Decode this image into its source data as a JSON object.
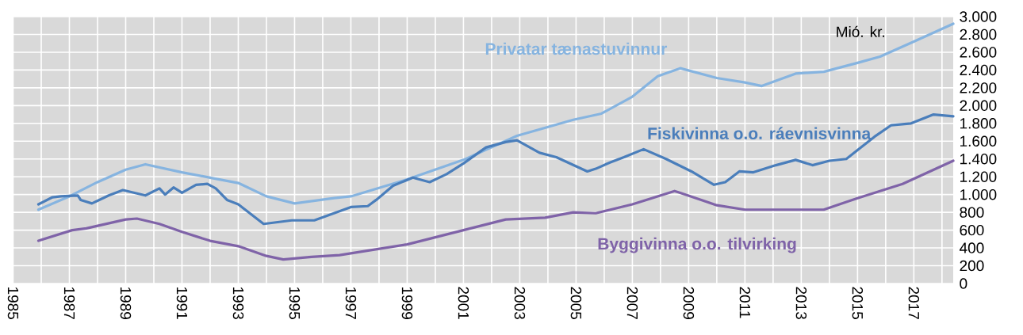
{
  "chart_data": {
    "type": "line",
    "ylabel": "Mió. kr.",
    "grid": true,
    "xlim": [
      1985,
      2018.4
    ],
    "ylim": [
      0,
      3000
    ],
    "xticks": [
      1985,
      {
        "value": 1986,
        "label": null
      },
      1987,
      {
        "value": 1988,
        "label": null
      },
      1989,
      {
        "value": 1990,
        "label": null
      },
      1991,
      {
        "value": 1992,
        "label": null
      },
      1993,
      {
        "value": 1994,
        "label": null
      },
      1995,
      {
        "value": 1996,
        "label": null
      },
      1997,
      {
        "value": 1998,
        "label": null
      },
      1999,
      {
        "value": 2000,
        "label": null
      },
      2001,
      {
        "value": 2002,
        "label": null
      },
      2003,
      {
        "value": 2004,
        "label": null
      },
      2005,
      {
        "value": 2006,
        "label": null
      },
      2007,
      {
        "value": 2008,
        "label": null
      },
      2009,
      {
        "value": 2010,
        "label": null
      },
      2011,
      {
        "value": 2012,
        "label": null
      },
      2013,
      {
        "value": 2014,
        "label": null
      },
      2015,
      {
        "value": 2016,
        "label": null
      },
      2017,
      {
        "value": 2018,
        "label": null
      }
    ],
    "yticks": [
      0,
      200,
      400,
      600,
      800,
      {
        "value": 1000,
        "label": "1.000"
      },
      {
        "value": 1200,
        "label": "1.200"
      },
      {
        "value": 1400,
        "label": "1.400"
      },
      {
        "value": 1600,
        "label": "1.600"
      },
      {
        "value": 1800,
        "label": "1.800"
      },
      {
        "value": 2000,
        "label": "2.000"
      },
      {
        "value": 2200,
        "label": "2.200"
      },
      {
        "value": 2400,
        "label": "2.400"
      },
      {
        "value": 2600,
        "label": "2.600"
      },
      {
        "value": 2800,
        "label": "2.800"
      },
      {
        "value": 3000,
        "label": "3.000"
      }
    ],
    "series": [
      {
        "name": "Privatar tænastuvinnur",
        "color": "#86b4e0",
        "x": [
          1985.9,
          1987.0,
          1988.0,
          1989.0,
          1989.7,
          1991.0,
          1992.0,
          1993.0,
          1994.0,
          1995.0,
          1996.4,
          1997.0,
          1999.0,
          2001.0,
          2002.9,
          2004.9,
          2005.9,
          2007.0,
          2007.9,
          2008.7,
          2010.0,
          2011.0,
          2011.6,
          2012.8,
          2013.8,
          2015.0,
          2015.8,
          2017.0,
          2018.4
        ],
        "values": [
          830,
          980,
          1140,
          1280,
          1340,
          1250,
          1190,
          1130,
          980,
          900,
          960,
          980,
          1170,
          1390,
          1660,
          1840,
          1910,
          2100,
          2330,
          2420,
          2310,
          2260,
          2220,
          2360,
          2380,
          2480,
          2550,
          2720,
          2920
        ]
      },
      {
        "name": "Fiskivinna o.o. ráevnisvinna",
        "color": "#4a7ebb",
        "x": [
          1985.9,
          1986.4,
          1986.7,
          1987.3,
          1987.4,
          1987.8,
          1988.4,
          1988.9,
          1989.7,
          1990.2,
          1990.4,
          1990.7,
          1991.0,
          1991.5,
          1991.9,
          1992.2,
          1992.6,
          1993.0,
          1993.9,
          1994.9,
          1995.7,
          1996.4,
          1997.0,
          1997.6,
          1997.9,
          1998.5,
          1999.2,
          1999.8,
          2000.4,
          2001.0,
          2001.8,
          2002.5,
          2002.9,
          2003.7,
          2004.3,
          2005.4,
          2005.7,
          2006.2,
          2006.7,
          2007.4,
          2008.2,
          2009.1,
          2009.9,
          2010.3,
          2010.8,
          2011.3,
          2012.1,
          2012.8,
          2013.4,
          2014.0,
          2014.6,
          2015.0,
          2015.6,
          2016.2,
          2016.9,
          2017.7,
          2018.4
        ],
        "values": [
          890,
          970,
          980,
          990,
          940,
          900,
          990,
          1050,
          990,
          1070,
          1000,
          1080,
          1020,
          1110,
          1120,
          1070,
          940,
          890,
          670,
          710,
          710,
          790,
          860,
          870,
          940,
          1100,
          1190,
          1140,
          1230,
          1350,
          1530,
          1590,
          1610,
          1470,
          1420,
          1260,
          1290,
          1360,
          1420,
          1510,
          1400,
          1260,
          1110,
          1140,
          1260,
          1250,
          1330,
          1390,
          1330,
          1380,
          1400,
          1500,
          1650,
          1780,
          1800,
          1900,
          1880
        ]
      },
      {
        "name": "Byggivinna o.o. tilvirking",
        "color": "#7f63a8",
        "x": [
          1985.9,
          1987.1,
          1987.6,
          1989.0,
          1989.4,
          1990.2,
          1991.0,
          1992.0,
          1993.0,
          1994.0,
          1994.6,
          1995.6,
          1996.6,
          1999.0,
          2001.0,
          2002.5,
          2003.9,
          2004.9,
          2005.7,
          2007.0,
          2008.5,
          2008.7,
          2010.0,
          2011.0,
          2013.8,
          2015.0,
          2016.6,
          2018.4
        ],
        "values": [
          480,
          600,
          620,
          720,
          730,
          670,
          580,
          480,
          420,
          310,
          270,
          300,
          320,
          440,
          600,
          720,
          740,
          800,
          790,
          890,
          1040,
          1020,
          880,
          830,
          830,
          960,
          1120,
          1380
        ]
      }
    ]
  }
}
